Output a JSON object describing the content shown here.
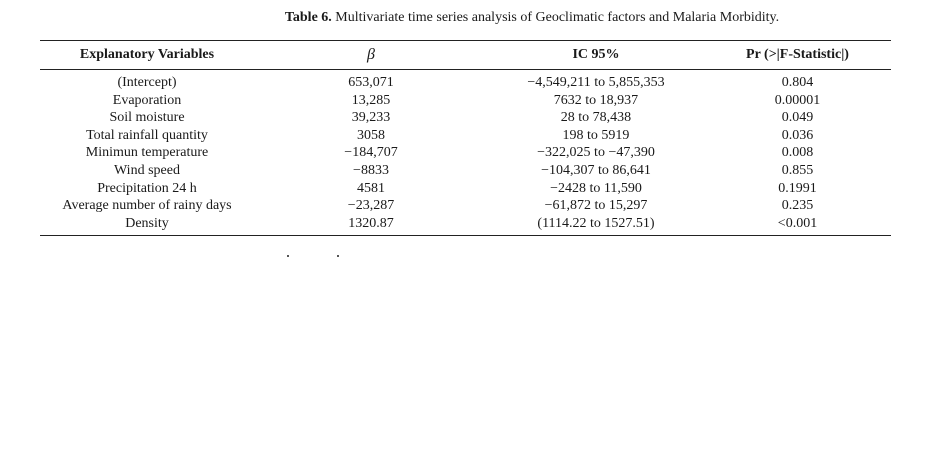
{
  "caption": {
    "label": "Table 6.",
    "text": "Multivariate time series analysis of Geoclimatic factors and Malaria Morbidity."
  },
  "table": {
    "headers": [
      "Explanatory Variables",
      "β",
      "IC 95%",
      "Pr (>|F-Statistic|)"
    ],
    "rows": [
      [
        "(Intercept)",
        "653,071",
        "−4,549,211 to 5,855,353",
        "0.804"
      ],
      [
        "Evaporation",
        "13,285",
        "7632 to 18,937",
        "0.00001"
      ],
      [
        "Soil moisture",
        "39,233",
        "28 to 78,438",
        "0.049"
      ],
      [
        "Total rainfall quantity",
        "3058",
        "198 to 5919",
        "0.036"
      ],
      [
        "Minimun temperature",
        "−184,707",
        "−322,025 to −47,390",
        "0.008"
      ],
      [
        "Wind speed",
        "−8833",
        "−104,307 to 86,641",
        "0.855"
      ],
      [
        "Precipitation 24 h",
        "4581",
        "−2428 to 11,590",
        "0.1991"
      ],
      [
        "Average number of rainy days",
        "−23,287",
        "−61,872 to 15,297",
        "0.235"
      ],
      [
        "Density",
        "1320.87",
        "(1114.22 to 1527.51)",
        "<0.001"
      ]
    ]
  }
}
